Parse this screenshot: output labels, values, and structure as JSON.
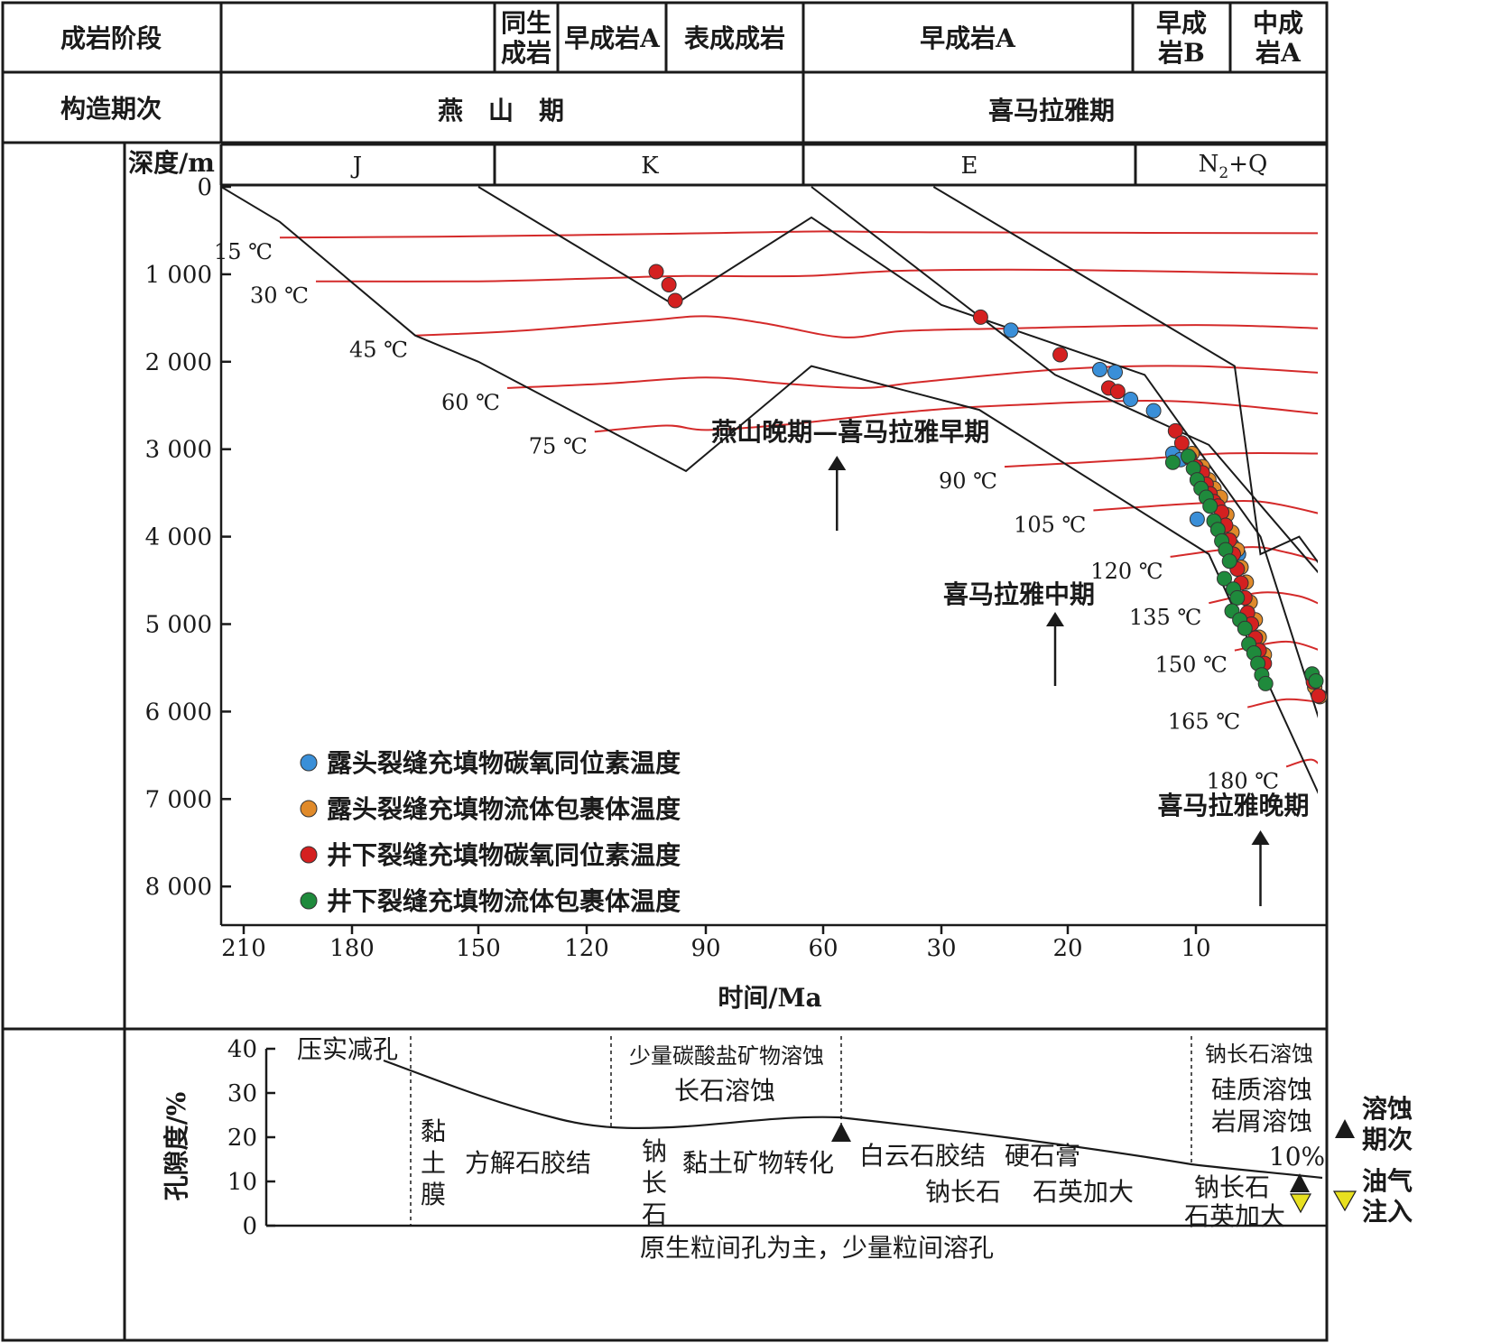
{
  "header": {
    "row1_label": "成岩阶段",
    "row2_label": "构造期次",
    "stages": [
      "同生成岩",
      "早成岩A",
      "表成成岩",
      "早成岩A",
      "早成岩B",
      "中成岩A"
    ],
    "periods": [
      "燕　山　期",
      "喜马拉雅期"
    ],
    "strata": [
      "J",
      "K",
      "E"
    ],
    "strata_last": {
      "base": "N",
      "sub": "2",
      "tail": "+Q"
    }
  },
  "chart_data": {
    "type": "scatter",
    "xlabel": "时间/Ma",
    "ylabel": "深度/m",
    "x_reversed": true,
    "y_reversed": true,
    "xlim": [
      215,
      0
    ],
    "ylim": [
      0,
      8500
    ],
    "x_ticks": [
      210,
      180,
      150,
      120,
      90,
      60,
      30,
      20,
      10
    ],
    "x_tick_labels": [
      "210",
      "180",
      "150",
      "120",
      "90",
      "60",
      "30",
      "20",
      "10"
    ],
    "y_ticks": [
      0,
      1000,
      2000,
      3000,
      4000,
      5000,
      6000,
      7000,
      8000
    ],
    "y_tick_labels": [
      "0",
      "1 000",
      "2 000",
      "3 000",
      "4 000",
      "5 000",
      "6 000",
      "7 000",
      "8 000"
    ],
    "burial_curves": [
      {
        "points": [
          [
            215,
            0
          ],
          [
            200,
            400
          ],
          [
            165,
            1700
          ],
          [
            150,
            2000
          ],
          [
            95,
            3250
          ],
          [
            63,
            2050
          ],
          [
            27,
            2550
          ],
          [
            9,
            4200
          ],
          [
            0,
            7100
          ]
        ]
      },
      {
        "points": [
          [
            150,
            0
          ],
          [
            98,
            1350
          ],
          [
            63,
            350
          ],
          [
            30,
            1350
          ],
          [
            14,
            2150
          ],
          [
            5,
            4000
          ],
          [
            0,
            6300
          ]
        ]
      },
      {
        "points": [
          [
            63,
            0
          ],
          [
            21,
            2150
          ],
          [
            9,
            2950
          ],
          [
            0,
            4500
          ]
        ]
      },
      {
        "points": [
          [
            32,
            0
          ],
          [
            7,
            2050
          ],
          [
            5,
            4200
          ],
          [
            2,
            4000
          ],
          [
            0,
            4400
          ]
        ]
      }
    ],
    "isotherms": [
      {
        "label": "15 ℃",
        "points": [
          [
            200,
            580
          ],
          [
            160,
            570
          ],
          [
            120,
            550
          ],
          [
            90,
            530
          ],
          [
            60,
            510
          ],
          [
            30,
            520
          ],
          [
            0,
            530
          ]
        ]
      },
      {
        "label": "30 ℃",
        "points": [
          [
            190,
            1080
          ],
          [
            150,
            1080
          ],
          [
            120,
            1050
          ],
          [
            95,
            1020
          ],
          [
            65,
            1020
          ],
          [
            40,
            960
          ],
          [
            20,
            950
          ],
          [
            0,
            1000
          ]
        ]
      },
      {
        "label": "45 ℃",
        "points": [
          [
            165,
            1700
          ],
          [
            140,
            1650
          ],
          [
            105,
            1530
          ],
          [
            90,
            1480
          ],
          [
            75,
            1560
          ],
          [
            55,
            1720
          ],
          [
            40,
            1650
          ],
          [
            25,
            1620
          ],
          [
            10,
            1580
          ],
          [
            0,
            1620
          ]
        ]
      },
      {
        "label": "60 ℃",
        "points": [
          [
            142,
            2300
          ],
          [
            115,
            2250
          ],
          [
            90,
            2180
          ],
          [
            70,
            2250
          ],
          [
            50,
            2300
          ],
          [
            35,
            2230
          ],
          [
            20,
            2080
          ],
          [
            10,
            2050
          ],
          [
            0,
            2130
          ]
        ]
      },
      {
        "label": "75 ℃",
        "points": [
          [
            118,
            2800
          ],
          [
            100,
            2730
          ],
          [
            90,
            2780
          ],
          [
            70,
            2720
          ],
          [
            40,
            2580
          ],
          [
            25,
            2500
          ],
          [
            12,
            2450
          ],
          [
            0,
            2600
          ]
        ]
      },
      {
        "label": "90 ℃",
        "points": [
          [
            25,
            3200
          ],
          [
            15,
            3120
          ],
          [
            8,
            3050
          ],
          [
            0,
            3050
          ]
        ]
      },
      {
        "label": "105 ℃",
        "points": [
          [
            18,
            3700
          ],
          [
            10,
            3620
          ],
          [
            5,
            3600
          ],
          [
            0,
            3750
          ]
        ]
      },
      {
        "label": "120 ℃",
        "points": [
          [
            12,
            4230
          ],
          [
            6,
            4120
          ],
          [
            3,
            4180
          ],
          [
            0,
            4300
          ]
        ]
      },
      {
        "label": "135 ℃",
        "points": [
          [
            9,
            4760
          ],
          [
            5,
            4640
          ],
          [
            2,
            4680
          ],
          [
            0,
            4800
          ]
        ]
      },
      {
        "label": "150 ℃",
        "points": [
          [
            7,
            5300
          ],
          [
            3,
            5200
          ],
          [
            0,
            5320
          ]
        ]
      },
      {
        "label": "165 ℃",
        "points": [
          [
            6,
            5950
          ],
          [
            3,
            5860
          ],
          [
            0,
            5900
          ]
        ]
      },
      {
        "label": "180 ℃",
        "points": [
          [
            3,
            6630
          ],
          [
            1,
            6550
          ],
          [
            0,
            6700
          ]
        ]
      }
    ],
    "series": [
      {
        "name": "露头裂缝充填物碳氧同位素温度",
        "color": "#3a8fd8",
        "points": [
          [
            24.5,
            1640
          ],
          [
            17.5,
            2090
          ],
          [
            16.3,
            2120
          ],
          [
            15.1,
            2430
          ],
          [
            13.3,
            2560
          ],
          [
            11.8,
            3050
          ],
          [
            11.2,
            3120
          ],
          [
            9.9,
            3800
          ],
          [
            7.6,
            4000
          ],
          [
            7.2,
            4100
          ],
          [
            6.7,
            4200
          ]
        ]
      },
      {
        "name": "露头裂缝充填物流体包裹体温度",
        "color": "#e08a2a",
        "points": [
          [
            10.3,
            3050
          ],
          [
            9.5,
            3200
          ],
          [
            9.0,
            3350
          ],
          [
            8.6,
            3450
          ],
          [
            8.1,
            3550
          ],
          [
            7.6,
            3750
          ],
          [
            7.2,
            3950
          ],
          [
            6.8,
            4150
          ],
          [
            6.5,
            4350
          ],
          [
            6.1,
            4520
          ],
          [
            5.8,
            4750
          ],
          [
            5.4,
            4950
          ],
          [
            5.1,
            5150
          ],
          [
            4.7,
            5350
          ],
          [
            0.8,
            5720
          ],
          [
            0.4,
            5830
          ]
        ]
      },
      {
        "name": "井下裂缝充填物碳氧同位素温度",
        "color": "#d42020",
        "points": [
          [
            102.5,
            970
          ],
          [
            99.3,
            1120
          ],
          [
            97.7,
            1300
          ],
          [
            26.9,
            1490
          ],
          [
            20.6,
            1920
          ],
          [
            16.8,
            2300
          ],
          [
            16.1,
            2340
          ],
          [
            11.6,
            2790
          ],
          [
            11.1,
            2930
          ],
          [
            10.5,
            3100
          ],
          [
            10.0,
            3200
          ],
          [
            9.5,
            3270
          ],
          [
            9.2,
            3400
          ],
          [
            8.9,
            3510
          ],
          [
            8.6,
            3600
          ],
          [
            8.3,
            3650
          ],
          [
            8.0,
            3720
          ],
          [
            7.7,
            3870
          ],
          [
            7.4,
            4040
          ],
          [
            7.1,
            4200
          ],
          [
            6.8,
            4370
          ],
          [
            6.5,
            4530
          ],
          [
            6.2,
            4700
          ],
          [
            6.0,
            4870
          ],
          [
            5.7,
            5000
          ],
          [
            5.4,
            5160
          ],
          [
            5.1,
            5300
          ],
          [
            4.7,
            5450
          ],
          [
            0.9,
            5660
          ],
          [
            0.5,
            5820
          ]
        ]
      },
      {
        "name": "井下裂缝充填物流体包裹体温度",
        "color": "#1f8a3c",
        "points": [
          [
            11.8,
            3150
          ],
          [
            10.6,
            3080
          ],
          [
            10.2,
            3220
          ],
          [
            9.9,
            3350
          ],
          [
            9.6,
            3450
          ],
          [
            9.2,
            3550
          ],
          [
            8.9,
            3650
          ],
          [
            8.6,
            3820
          ],
          [
            8.3,
            3920
          ],
          [
            8.0,
            4050
          ],
          [
            7.7,
            4150
          ],
          [
            7.4,
            4280
          ],
          [
            7.8,
            4480
          ],
          [
            7.1,
            4600
          ],
          [
            6.8,
            4700
          ],
          [
            7.2,
            4850
          ],
          [
            6.6,
            4950
          ],
          [
            6.2,
            5050
          ],
          [
            5.9,
            5230
          ],
          [
            5.5,
            5330
          ],
          [
            5.2,
            5450
          ],
          [
            4.9,
            5580
          ],
          [
            4.6,
            5680
          ],
          [
            1.0,
            5570
          ],
          [
            0.7,
            5650
          ]
        ]
      }
    ],
    "events": [
      {
        "label": "燕山晚期—喜马拉雅早期",
        "x": 56.5
      },
      {
        "label": "喜马拉雅中期",
        "x": 21
      },
      {
        "label": "喜马拉雅晚期",
        "x": 5
      }
    ],
    "legend": {
      "position": "bottom-left"
    }
  },
  "porosity": {
    "ylabel": "孔隙度/%",
    "y_ticks": [
      0,
      10,
      20,
      30,
      40
    ],
    "curve_label": "10%",
    "labels": {
      "compaction": "压实减孔",
      "clay_film": [
        "黏",
        "土",
        "膜"
      ],
      "calcite": "方解石胶结",
      "carbonate_diss": "少量碳酸盐矿物溶蚀",
      "feldspar_diss": "长石溶蚀",
      "albite": [
        "钠",
        "长",
        "石"
      ],
      "clay_transform": "黏土矿物转化",
      "dolomite": "白云石胶结",
      "anhydrite": "硬石膏",
      "albite2": "钠长石",
      "quartz": "石英加大",
      "albite_diss": "钠长石溶蚀",
      "silica_diss": "硅质溶蚀",
      "debris_diss": "岩屑溶蚀",
      "albite3": "钠长石",
      "quartz2": "石英加大",
      "primary": "原生粒间孔为主，少量粒间溶孔"
    },
    "legend": {
      "dissolution": [
        "溶蚀",
        "期次"
      ],
      "charging": [
        "油气",
        "注入"
      ]
    }
  }
}
